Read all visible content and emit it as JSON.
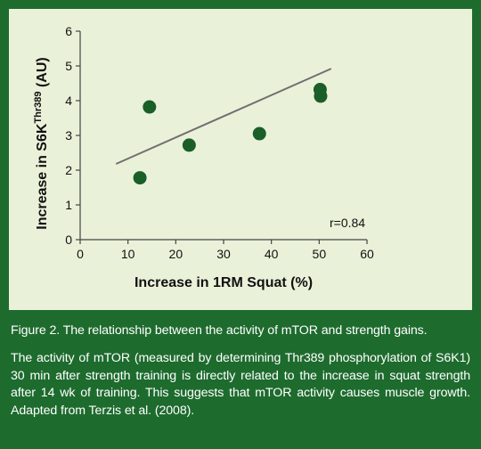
{
  "colors": {
    "frame": "#1e6b2e",
    "panel": "#eaf1d9",
    "marker": "#1a5e28",
    "trendline": "#707070",
    "axis": "#444444",
    "caption_text": "#ffffff"
  },
  "chart_data": {
    "type": "scatter",
    "title": "",
    "xlabel": "Increase in 1RM Squat (%)",
    "ylabel_main": "Increase in S6K",
    "ylabel_sup": "Thr389",
    "ylabel_unit": " (AU)",
    "xlim": [
      0,
      60
    ],
    "ylim": [
      0,
      6
    ],
    "xticks": [
      0,
      10,
      20,
      30,
      40,
      50,
      60
    ],
    "yticks": [
      0,
      1,
      2,
      3,
      4,
      5,
      6
    ],
    "grid": false,
    "legend": "none",
    "points": [
      {
        "x": 12.5,
        "y": 1.78
      },
      {
        "x": 14.5,
        "y": 3.82
      },
      {
        "x": 22.8,
        "y": 2.72
      },
      {
        "x": 37.5,
        "y": 3.05
      },
      {
        "x": 50.2,
        "y": 4.32
      },
      {
        "x": 50.3,
        "y": 4.13
      }
    ],
    "trendline": {
      "x": [
        7.5,
        52.5
      ],
      "y": [
        2.18,
        4.92
      ]
    },
    "annotation": "r=0.84"
  },
  "caption": {
    "title": "Figure 2. The relationship between the activity of mTOR and strength gains.",
    "body": "The activity of mTOR (measured by determining Thr389 phosphorylation of S6K1) 30 min after strength training is directly related to the increase in squat strength after 14 wk of training. This suggests that mTOR activity causes muscle growth. Adapted from Terzis et al. (2008)."
  }
}
